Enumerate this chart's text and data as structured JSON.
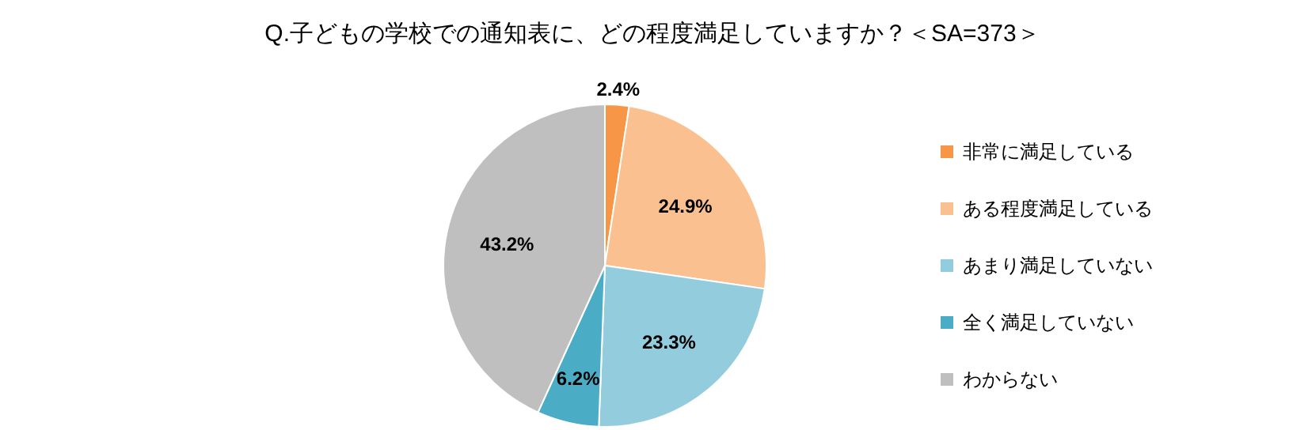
{
  "chart_data": {
    "type": "pie",
    "title": "Q.子どもの学校での通知表に、どの程度満足していますか？＜SA=373＞",
    "categories": [
      "非常に満足している",
      "ある程度満足している",
      "あまり満足していない",
      "全く満足していない",
      "わからない"
    ],
    "values": [
      2.4,
      24.9,
      23.3,
      6.2,
      43.2
    ],
    "colors": [
      "#f79646",
      "#fac090",
      "#93cddd",
      "#4bacc6",
      "#bfbfbf"
    ],
    "value_labels": [
      "2.4%",
      "24.9%",
      "23.3%",
      "6.2%",
      "43.2%"
    ],
    "legend": "right"
  }
}
